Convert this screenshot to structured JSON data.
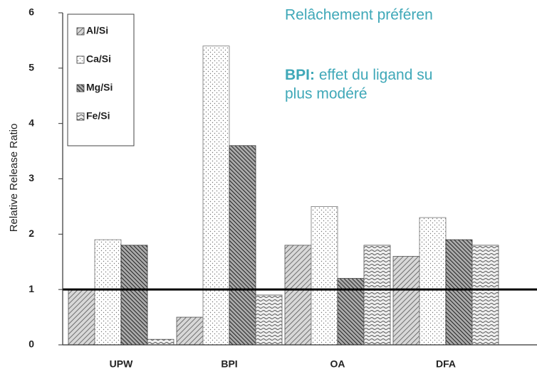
{
  "chart_data": {
    "type": "bar",
    "y_label": "Relative Release Ratio",
    "categories": [
      "UPW",
      "BPI",
      "OA",
      "DFA"
    ],
    "series": [
      {
        "name": "Al/Si",
        "color": "#555555",
        "pattern": "hatch",
        "values": [
          1.0,
          0.5,
          1.8,
          1.6
        ]
      },
      {
        "name": "Ca/Si",
        "color": "#777777",
        "pattern": "dots",
        "values": [
          1.9,
          5.4,
          2.5,
          2.3
        ]
      },
      {
        "name": "Mg/Si",
        "color": "#333333",
        "pattern": "dense-hatch",
        "values": [
          1.8,
          3.6,
          1.2,
          1.9
        ]
      },
      {
        "name": "Fe/Si",
        "color": "#555555",
        "pattern": "waves",
        "values": [
          0.1,
          0.9,
          1.8,
          1.8
        ]
      }
    ],
    "reference_line": 1,
    "ylim": [
      0,
      6
    ],
    "yticks": [
      0,
      1,
      2,
      3,
      4,
      5,
      6
    ],
    "grid": false,
    "legend": "top-left",
    "annotations": [
      {
        "text": "Relâchement préféren"
      },
      {
        "bold": "BPI:",
        "text": "effet du ligand su"
      },
      {
        "text": "plus modéré"
      }
    ]
  }
}
